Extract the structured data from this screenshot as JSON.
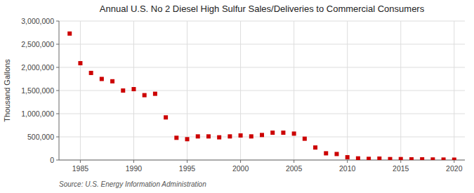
{
  "chart_data": {
    "type": "scatter",
    "title": "Annual U.S. No 2 Diesel High Sulfur Sales/Deliveries to Commercial Consumers",
    "ylabel": "Thousand Gallons",
    "source": "Source: U.S. Energy Information Administration",
    "x": [
      1984,
      1985,
      1986,
      1987,
      1988,
      1989,
      1990,
      1991,
      1992,
      1993,
      1994,
      1995,
      1996,
      1997,
      1998,
      1999,
      2000,
      2001,
      2002,
      2003,
      2004,
      2005,
      2006,
      2007,
      2008,
      2009,
      2010,
      2011,
      2012,
      2013,
      2014,
      2015,
      2016,
      2017,
      2018,
      2019,
      2020
    ],
    "values": [
      2730000,
      2090000,
      1880000,
      1750000,
      1700000,
      1500000,
      1530000,
      1400000,
      1430000,
      920000,
      480000,
      450000,
      510000,
      510000,
      490000,
      510000,
      530000,
      510000,
      540000,
      590000,
      590000,
      570000,
      460000,
      270000,
      145000,
      130000,
      60000,
      35000,
      25000,
      30000,
      20000,
      20000,
      15000,
      15000,
      12000,
      10000,
      8000
    ],
    "color": "#cc0000",
    "marker": "square",
    "xlim": [
      1983,
      2021
    ],
    "ylim": [
      0,
      3000000
    ],
    "xticks": [
      1985,
      1990,
      1995,
      2000,
      2005,
      2010,
      2015,
      2020
    ],
    "yticks": [
      0,
      {
        "value": 500000,
        "label": "500,000"
      },
      {
        "value": 1000000,
        "label": "1,000,000"
      },
      {
        "value": 1500000,
        "label": "1,500,000"
      },
      {
        "value": 2000000,
        "label": "2,000,000"
      },
      {
        "value": 2500000,
        "label": "2,500,000"
      },
      {
        "value": 3000000,
        "label": "3,000,000"
      }
    ],
    "grid": true
  }
}
